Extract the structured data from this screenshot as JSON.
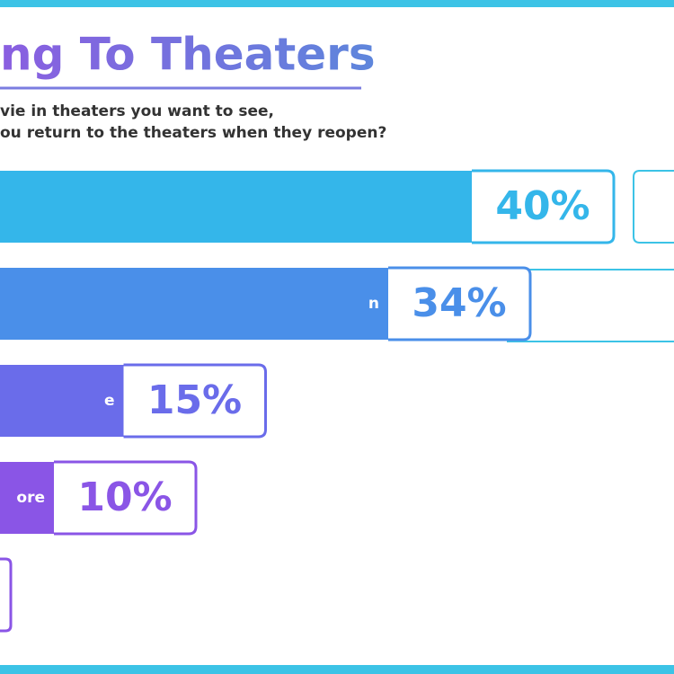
{
  "chart_data": {
    "type": "bar",
    "orientation": "horizontal",
    "title": "ng To Theaters",
    "subtitle": [
      "vie in theaters you want to see,",
      "ou return to the theaters when they reopen?"
    ],
    "categories": [
      null,
      "n",
      "e",
      "ore"
    ],
    "values": [
      40,
      34,
      15,
      10
    ],
    "value_labels": [
      "40%",
      "34%",
      "15%",
      "10%"
    ],
    "colors": [
      "#34b6ea",
      "#4a8fe9",
      "#6a6cea",
      "#8a55e6"
    ]
  }
}
